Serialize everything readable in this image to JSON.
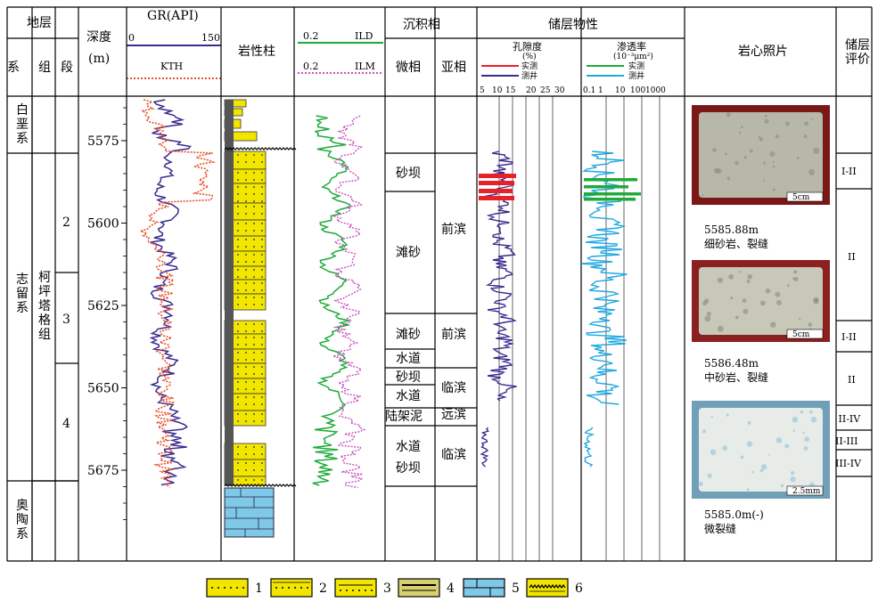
{
  "header": {
    "strata": "地层",
    "system": "系",
    "group": "组",
    "member": "段",
    "depth": "深度",
    "depth_unit": "(m)",
    "gr": "GR(API)",
    "gr_min": "0",
    "gr_max": "150",
    "kth": "KTH",
    "lithology": "岩性柱",
    "ild_min": "0.2",
    "ild": "ILD",
    "ilm_min": "0.2",
    "ilm": "ILM",
    "facies": "沉积相",
    "microfacies": "微相",
    "subfacies": "亚相",
    "reservoir": "储层物性",
    "porosity": "孔隙度",
    "porosity_unit": "(%)",
    "perm": "渗透率",
    "perm_unit": "(10⁻³μm²)",
    "measured": "实测",
    "logging": "测井",
    "core_photo": "岩心照片",
    "eval_1": "储层",
    "eval_2": "评价"
  },
  "porosity_ticks": [
    "5",
    "10",
    "15",
    "20",
    "25",
    "30"
  ],
  "perm_ticks": [
    "0.1",
    "1",
    "10",
    "100",
    "1000"
  ],
  "depth_ticks": [
    "5575",
    "5600",
    "5625",
    "5650",
    "5675"
  ],
  "systems": [
    {
      "name": "白垩系"
    },
    {
      "name": "志留系"
    },
    {
      "name": "奥陶系"
    }
  ],
  "group_name": "柯坪塔格组",
  "members": [
    "2",
    "3",
    "4"
  ],
  "microfacies": [
    "砂坝",
    "滩砂",
    "滩砂",
    "水道",
    "砂坝",
    "水道",
    "陆架泥",
    "水道",
    "砂坝"
  ],
  "subfacies": [
    "前滨",
    "前滨",
    "临滨",
    "远滨",
    "临滨"
  ],
  "photos": [
    {
      "caption_depth": "5585.88m",
      "caption_desc": "细砂岩、裂缝",
      "scale": "5cm"
    },
    {
      "caption_depth": "5586.48m",
      "caption_desc": "中砂岩、裂缝",
      "scale": "5cm"
    },
    {
      "caption_depth": "5585.0m(-)",
      "caption_desc": "微裂缝",
      "scale": "2.5mm"
    }
  ],
  "evaluation": [
    "I-II",
    "II",
    "I-II",
    "II",
    "II-IV",
    "II-III",
    "III-IV"
  ],
  "legend": [
    "1",
    "2",
    "3",
    "4",
    "5",
    "6"
  ],
  "colors": {
    "sand": "#f2e600",
    "limestone": "#7fc8e8",
    "gr_line": "#3a2b8f",
    "kth_line": "#e8502a",
    "ild_line": "#1faa3a",
    "ilm_line": "#c850c0",
    "poro_measured": "#e8202a",
    "perm_logging": "#20a8e0"
  }
}
